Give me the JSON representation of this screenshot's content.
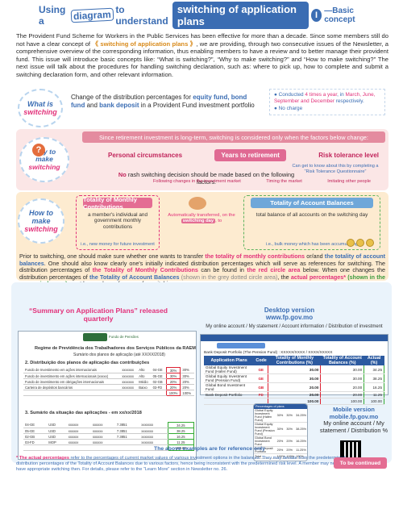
{
  "title": {
    "w1": "Using a",
    "w2": "diagram",
    "w3": "to understand",
    "main": "switching of application plans",
    "num": "I",
    "sub": "—Basic concept"
  },
  "intro": {
    "p1": "The Provident Fund Scheme for Workers in the Public Services has been effective for more than a decade.  Since some members still do not have a clear concept of",
    "hl": "《 switching of application plans 》",
    "p2": ", we are providing, through two consecutive issues of the Newsletter, a comprehensive overview of the corresponding information, thus enabling members to have a review and to better manage their provident fund. This issue will introduce basic concepts like: “What is switching?”, “Why to make switching?” and “How to make switching?” The next issue will talk about the procedures for handling switching declaration, such as: where to pick up, how to complete and submit a switching declaration form, and other relevant information."
  },
  "what": {
    "bubble_a": "What is",
    "bubble_b": "switching",
    "desc_a": "Change of the distribution percentages for",
    "desc_b": "equity fund, bond fund",
    "desc_c": "and",
    "desc_d": "bank deposit",
    "desc_e": "in a Provident Fund investment portfolio",
    "side_1": "Conducted",
    "side_2": "4 times a year",
    "side_3": ", in",
    "side_4": "March, June, September and December",
    "side_5": "respectively.",
    "side_6": "No charge"
  },
  "why": {
    "bubble_a": "Why to",
    "bubble_b": "make",
    "bubble_c": "switching",
    "strip": "Since retirement investment is long-term, switching is considered only when the factors below change:",
    "factors": [
      "Personal circumstances",
      "Years to retirement",
      "Risk tolerance level"
    ],
    "note": "Can get to know about this by completing a “Risk Tolerance Questionnaire”",
    "rule_a": "No",
    "rule_b": "rash switching decision should be made based on the following factors:",
    "sub": [
      "Following changes in the investment market",
      "Timing the market",
      "Imitating other people"
    ]
  },
  "how": {
    "bubble_a": "How to",
    "bubble_b": "make",
    "bubble_c": "switching",
    "left_title": "Totality of Monthly Contributions",
    "left_text": "a member's individual and government monthly contributions",
    "left_eg": "i.e., new money for future investment",
    "mid_a": "Automatically transferred, on the",
    "mid_b": "switching day",
    "mid_c": ", to",
    "right_title": "Totality of Account Balances",
    "right_text": "total balance of all accounts on the switching day",
    "right_eg": "i.e., bulk money which has been accumulating",
    "body_1": "Prior to switching, one should make sure whether one wants to transfer",
    "body_2": "the totality of monthly contributions",
    "body_3": "or/and",
    "body_4": "the totality of account balances",
    "body_5": ".  One should also know clearly one's initially indicated distribution percentages which will serve as references for switching.  The distribution percentages of",
    "body_6": "the Totality of Monthly Contributions",
    "body_7": "can be found in",
    "body_8": "the red circle area",
    "body_9": "below.  When one changes the distribution percentages of",
    "body_10": "the Totality of Account Balances",
    "body_11": "(shown in the grey dotted circle area)",
    "body_12": ", the",
    "body_13": "actual percentages*",
    "body_14": "(shown in the green circle area)",
    "body_15": "must be used as references for switching."
  },
  "examples": {
    "summary_title": "“Summary on Application Plans” released quarterly",
    "desktop_a": "Desktop version",
    "desktop_b": "www.fp.gov.mo",
    "crumb": "My online account / My statement / Account information / Distribution of investment",
    "doc_logo": "Fundo de Pensões",
    "doc_l1": "Regime de Previdência dos Trabalhadores dos Serviços Públicos da RAEM",
    "doc_l2": "Sumário dos planos de aplicação (até XX/XX/2018)",
    "doc_s2": "2. Distribuição dos planos de aplicação das contribuições",
    "doc_s3": "3. Sumário da situação das aplicações - em xx/xx/2018",
    "doc_rows": [
      {
        "name": "Fundo de Investimento em ações internacionais",
        "m": "xxxxxxx",
        "r": "Alto",
        "s": "04-GE",
        "a": "30%",
        "b": "30%"
      },
      {
        "name": "Fundo de investimento em ações internacionais (xxxxx)",
        "m": "xxxxxxx",
        "r": "Alto",
        "s": "05-GE",
        "a": "30%",
        "b": "30%"
      },
      {
        "name": "Fundo de investimento em obrigações internacionais",
        "m": "xxxxxxx",
        "r": "Médio",
        "s": "02-GB",
        "a": "20%",
        "b": "20%"
      },
      {
        "name": "Carteira de depósitos bancários",
        "m": "xxxxxxx",
        "r": "Baixo",
        "s": "03-FD",
        "a": "20%",
        "b": "20%"
      },
      {
        "name": "",
        "m": "",
        "r": "",
        "s": "",
        "a": "100%",
        "b": "100%"
      }
    ],
    "doc_rows2": [
      {
        "s": "04-GE",
        "c": "USD",
        "u": "xxxxxx",
        "p": "xxxxxx",
        "r": "7.3851",
        "v": "xxxxxxx",
        "pct": "34.25"
      },
      {
        "s": "05-GE",
        "c": "USD",
        "u": "xxxxxx",
        "p": "xxxxxx",
        "r": "7.3851",
        "v": "xxxxxxx",
        "pct": "38.25"
      },
      {
        "s": "02-GB",
        "c": "USD",
        "u": "xxxxxx",
        "p": "xxxxxx",
        "r": "7.3851",
        "v": "xxxxxxx",
        "pct": "16.25"
      },
      {
        "s": "03-FD",
        "c": "MOP",
        "u": "xxxxxx",
        "p": "xxxxxx",
        "r": "",
        "v": "xxxxxxx",
        "pct": "11.25"
      },
      {
        "s": "",
        "c": "",
        "u": "",
        "p": "",
        "r": "",
        "v": "",
        "pct": "100.00"
      }
    ],
    "desk_acc": "Bank Deposit Portfolio (The Pension Fund) : XXXXX/XXXX / XXXX/XXXXX",
    "desk_cols": [
      "Application Plans",
      "Code",
      "Totality of Monthly Contributions (%)",
      "Totality of Account Balances (%)",
      "Actual (%)"
    ],
    "desk_rows": [
      {
        "plan": "Global Equity Investment Fund (Hafen Fund)",
        "code": "GE",
        "m": "30.00",
        "a": "30.00",
        "act": "34.25"
      },
      {
        "plan": "Global Equity Investment Fund (Pension Fund)",
        "code": "GE",
        "m": "30.00",
        "a": "30.00",
        "act": "38.25"
      },
      {
        "plan": "Global Bond Investment Fund",
        "code": "GB",
        "m": "20.00",
        "a": "20.00",
        "act": "16.25"
      },
      {
        "plan": "Bank Deposit Portfolio",
        "code": "FD",
        "m": "20.00",
        "a": "20.00",
        "act": "11.25"
      },
      {
        "plan": "",
        "code": "",
        "m": "100.00",
        "a": "100.00",
        "act": "100.00"
      }
    ],
    "mob_head": "Percentages of plans",
    "mob_rows": [
      {
        "p": "Global Equity Investment Fund (Hafen Fund)",
        "a": "30%",
        "b": "30%",
        "c": "34.25%"
      },
      {
        "p": "Global Equity Investment Fund (Pension Fund)",
        "a": "30%",
        "b": "30%",
        "c": "38.25%"
      },
      {
        "p": "Global Bond Investment Fund",
        "a": "20%",
        "b": "20%",
        "c": "16.25%"
      },
      {
        "p": "Bank Deposit Portfolio",
        "a": "20%",
        "b": "20%",
        "c": "11.25%"
      },
      {
        "p": "Total",
        "a": "100%",
        "b": "100%",
        "c": "100%"
      }
    ],
    "mobile_a": "Mobile version",
    "mobile_b": "mobile.fp.gov.mo",
    "mobile_c": "My online account / My statement / Distribution %",
    "ref": "The above examples are for reference only"
  },
  "footer": {
    "star": "*",
    "bold": "The actual percentages",
    "text": "refer to the percentages of current market values of various investment options in the balances. They may deviate from the predetermined distribution percentages of the Totality of Account Balances due to various factors, hence being inconsistent with the predetermined risk level.  A member may need to have appropriate switching then. For details, please refer to the “Learn More” section in Newsletter no. 26.",
    "cont": "To be continued"
  }
}
